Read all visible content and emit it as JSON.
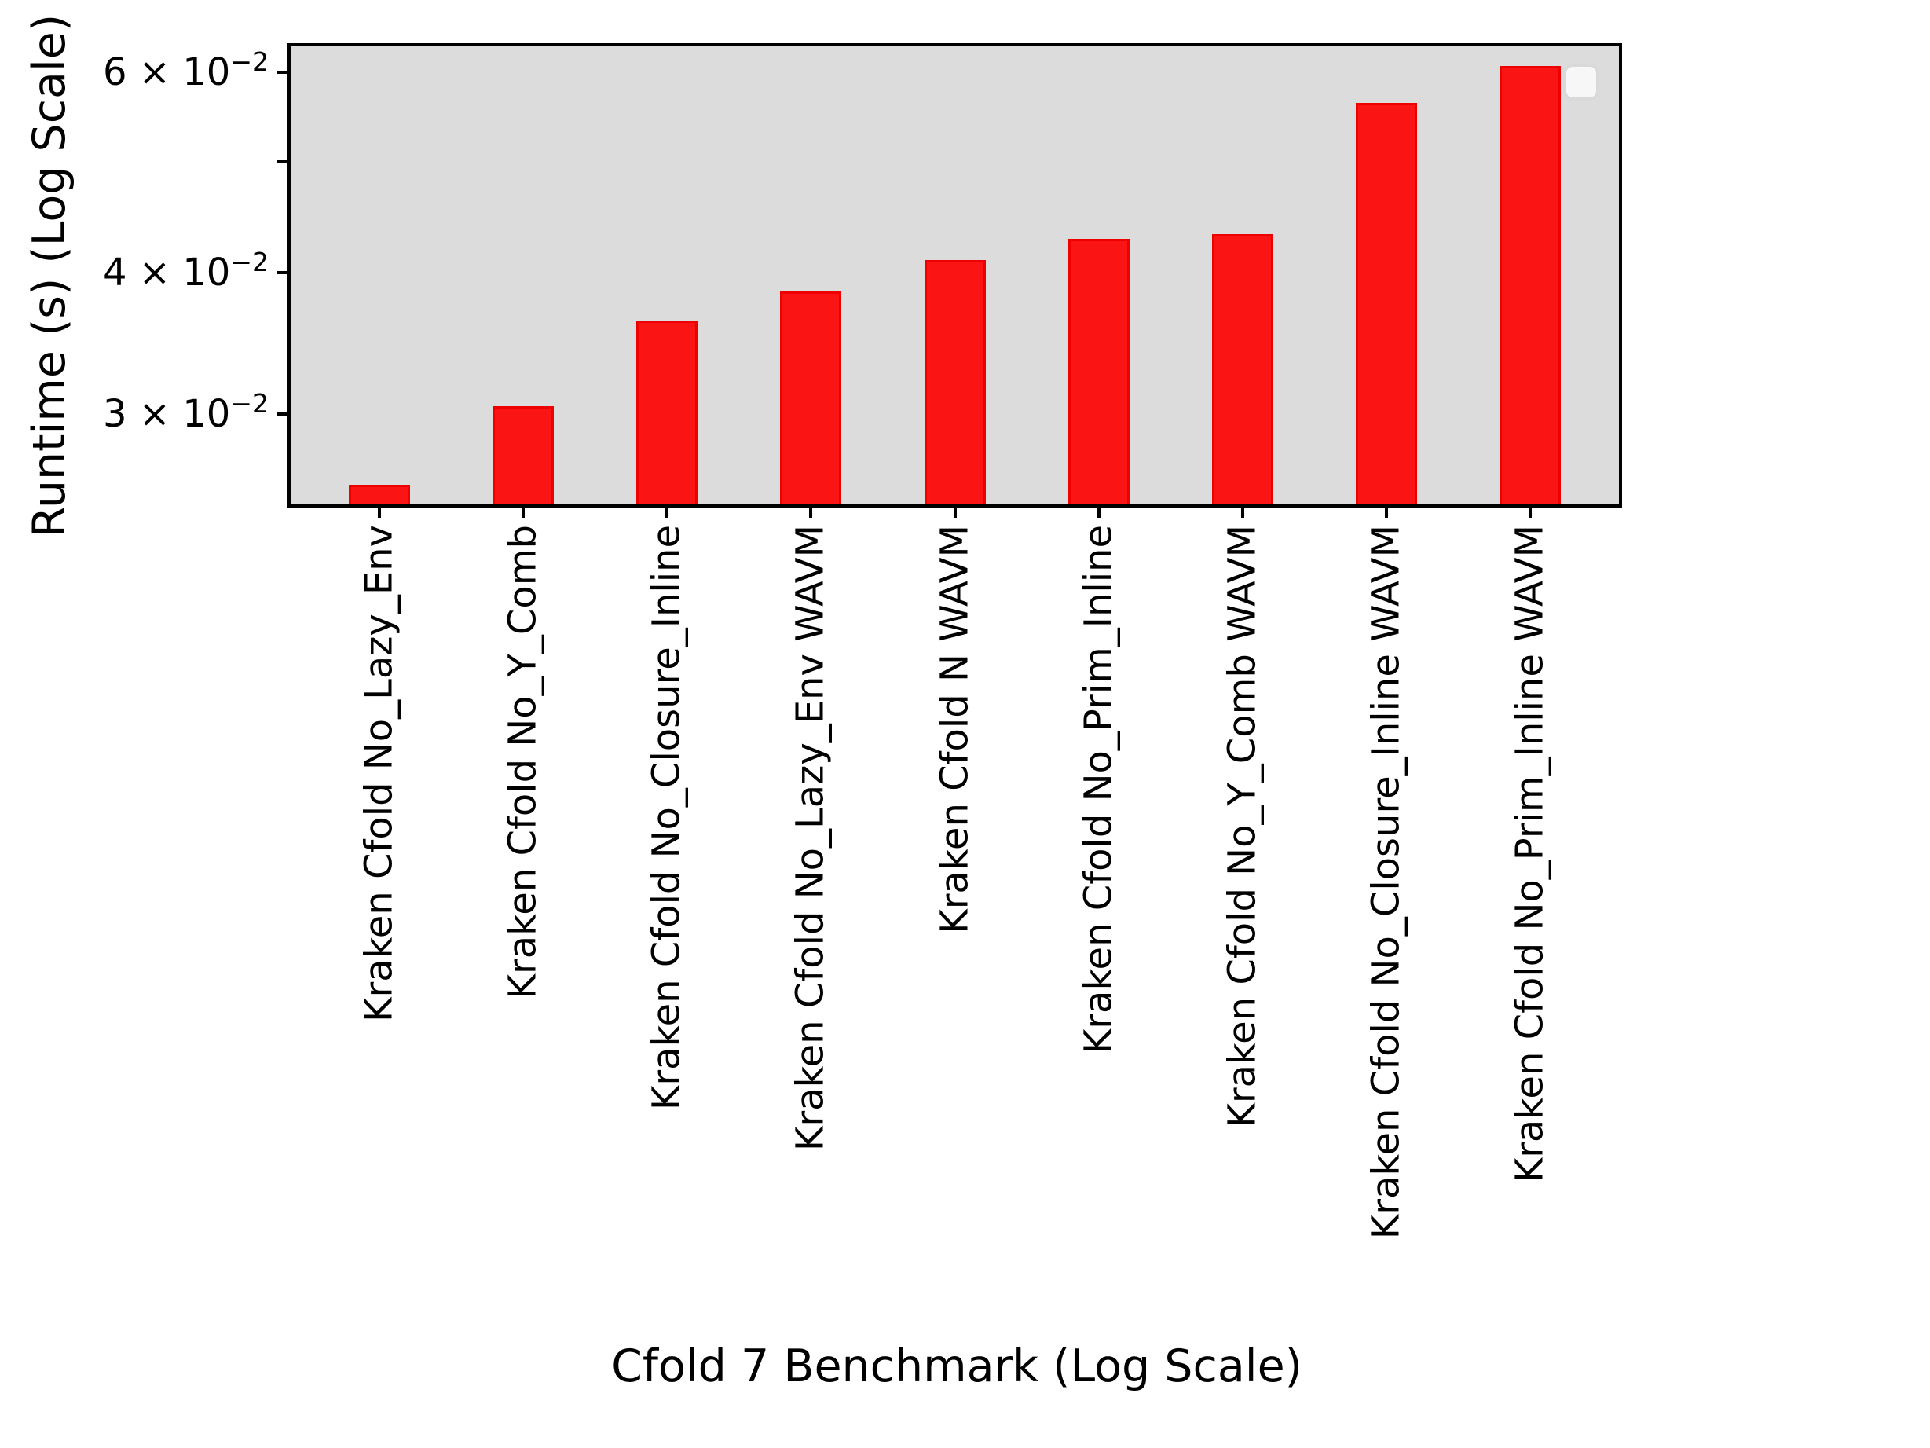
{
  "chart_data": {
    "type": "bar",
    "title": "",
    "xlabel": "Cfold 7 Benchmark (Log Scale)",
    "ylabel": "Runtime (s) (Log Scale)",
    "categories": [
      "Kraken Cfold No_Lazy_Env",
      "Kraken Cfold No_Y_Comb",
      "Kraken Cfold No_Closure_Inline",
      "Kraken Cfold No_Lazy_Env WAVM",
      "Kraken Cfold N WAVM",
      "Kraken Cfold No_Prim_Inline",
      "Kraken Cfold No_Y_Comb WAVM",
      "Kraken Cfold No_Closure_Inline WAVM",
      "Kraken Cfold No_Prim_Inline WAVM"
    ],
    "values": [
      0.026,
      0.0305,
      0.0363,
      0.0385,
      0.041,
      0.0428,
      0.0432,
      0.0564,
      0.0607
    ],
    "yscale": "log",
    "ylim": [
      0.025,
      0.0632
    ],
    "xlim": [
      -0.62,
      8.62
    ],
    "bar_width_units": 0.425,
    "yticks": [
      {
        "value": 0.06,
        "mantissa": "6 × 10",
        "exponent": "−2"
      },
      {
        "value": 0.05,
        "mantissa": "",
        "exponent": ""
      },
      {
        "value": 0.04,
        "mantissa": "4 × 10",
        "exponent": "−2"
      },
      {
        "value": 0.03,
        "mantissa": "3 × 10",
        "exponent": "−2"
      }
    ],
    "grid": false,
    "legend": {
      "visible": true,
      "entries": []
    },
    "colors": {
      "bar_fill": "#fa1414",
      "bar_edge": "#ee0000",
      "plot_background": "#dcdcdc",
      "frame": "#000000",
      "figure_background": "#ffffff",
      "legend_fill": "#f7f7f7",
      "legend_border": "#d9d9d9"
    }
  }
}
